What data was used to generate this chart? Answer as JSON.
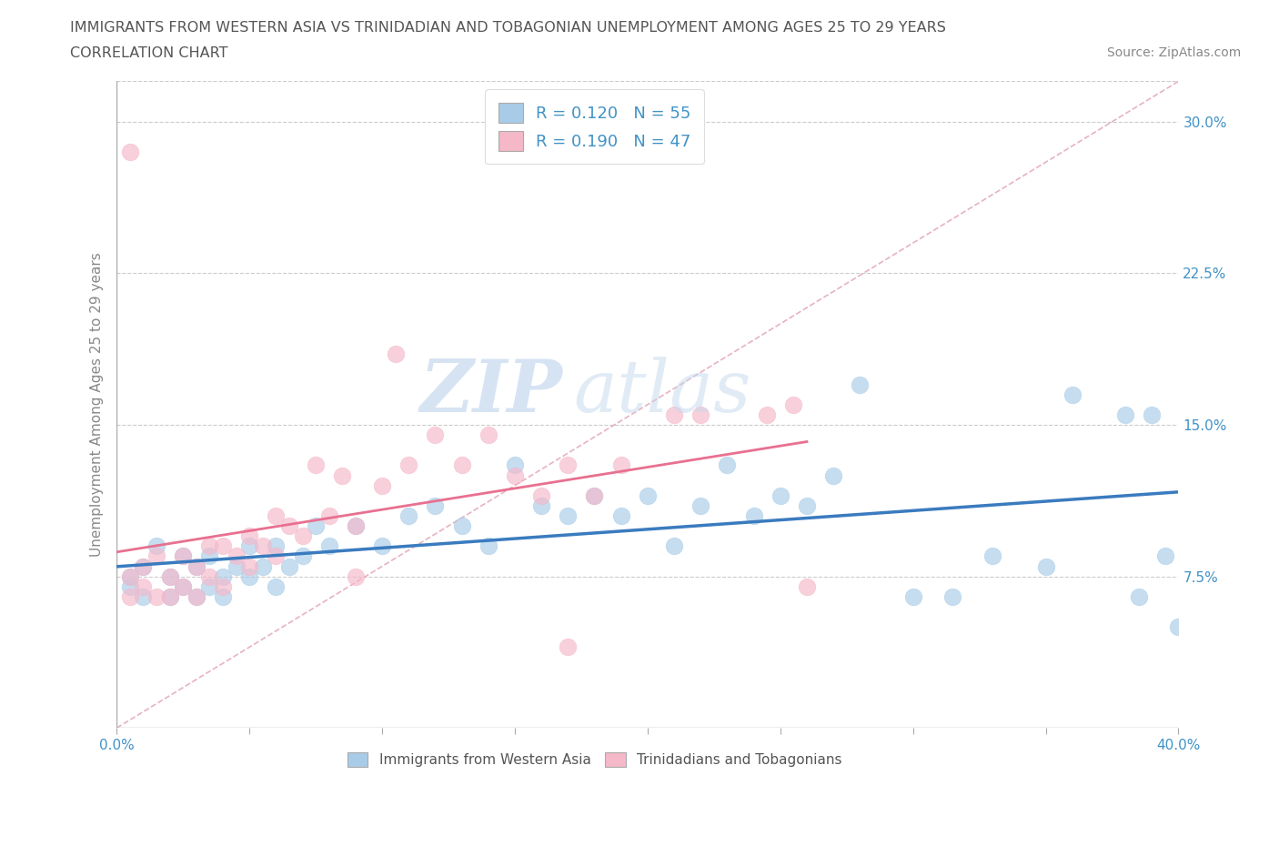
{
  "title_line1": "IMMIGRANTS FROM WESTERN ASIA VS TRINIDADIAN AND TOBAGONIAN UNEMPLOYMENT AMONG AGES 25 TO 29 YEARS",
  "title_line2": "CORRELATION CHART",
  "source_text": "Source: ZipAtlas.com",
  "ylabel": "Unemployment Among Ages 25 to 29 years",
  "xlim": [
    0.0,
    0.4
  ],
  "ylim": [
    0.0,
    0.32
  ],
  "xticks": [
    0.0,
    0.05,
    0.1,
    0.15,
    0.2,
    0.25,
    0.3,
    0.35,
    0.4
  ],
  "xlabel_ticks_show": [
    0.0,
    0.4
  ],
  "xticklabels_show": [
    "0.0%",
    "40.0%"
  ],
  "yticks_right": [
    0.075,
    0.15,
    0.225,
    0.3
  ],
  "yticklabels_right": [
    "7.5%",
    "15.0%",
    "22.5%",
    "30.0%"
  ],
  "legend_r1": "R = 0.120",
  "legend_n1": "N = 55",
  "legend_r2": "R = 0.190",
  "legend_n2": "N = 47",
  "color_blue": "#a8cce8",
  "color_pink": "#f5b8c8",
  "color_blue_line": "#3a7bbf",
  "color_pink_line": "#e87090",
  "color_dash": "#e8a0b0",
  "color_title": "#555555",
  "color_legend_text": "#4292c6",
  "watermark_zip": "ZIP",
  "watermark_atlas": "atlas",
  "blue_scatter_x": [
    0.005,
    0.005,
    0.01,
    0.01,
    0.015,
    0.02,
    0.02,
    0.025,
    0.025,
    0.03,
    0.03,
    0.035,
    0.035,
    0.04,
    0.04,
    0.045,
    0.05,
    0.05,
    0.055,
    0.06,
    0.06,
    0.065,
    0.07,
    0.075,
    0.08,
    0.09,
    0.1,
    0.11,
    0.12,
    0.13,
    0.14,
    0.15,
    0.16,
    0.17,
    0.18,
    0.19,
    0.2,
    0.21,
    0.22,
    0.23,
    0.24,
    0.25,
    0.26,
    0.27,
    0.28,
    0.3,
    0.315,
    0.33,
    0.35,
    0.36,
    0.38,
    0.385,
    0.39,
    0.395,
    0.4
  ],
  "blue_scatter_y": [
    0.07,
    0.075,
    0.065,
    0.08,
    0.09,
    0.065,
    0.075,
    0.07,
    0.085,
    0.065,
    0.08,
    0.07,
    0.085,
    0.065,
    0.075,
    0.08,
    0.075,
    0.09,
    0.08,
    0.07,
    0.09,
    0.08,
    0.085,
    0.1,
    0.09,
    0.1,
    0.09,
    0.105,
    0.11,
    0.1,
    0.09,
    0.13,
    0.11,
    0.105,
    0.115,
    0.105,
    0.115,
    0.09,
    0.11,
    0.13,
    0.105,
    0.115,
    0.11,
    0.125,
    0.17,
    0.065,
    0.065,
    0.085,
    0.08,
    0.165,
    0.155,
    0.065,
    0.155,
    0.085,
    0.05
  ],
  "pink_scatter_x": [
    0.005,
    0.005,
    0.005,
    0.01,
    0.01,
    0.015,
    0.015,
    0.02,
    0.02,
    0.025,
    0.025,
    0.03,
    0.03,
    0.035,
    0.035,
    0.04,
    0.04,
    0.045,
    0.05,
    0.05,
    0.055,
    0.06,
    0.06,
    0.065,
    0.07,
    0.075,
    0.08,
    0.085,
    0.09,
    0.1,
    0.11,
    0.12,
    0.13,
    0.14,
    0.15,
    0.16,
    0.17,
    0.18,
    0.19,
    0.21,
    0.22,
    0.245,
    0.255,
    0.26,
    0.105,
    0.09,
    0.17
  ],
  "pink_scatter_y": [
    0.065,
    0.075,
    0.285,
    0.07,
    0.08,
    0.065,
    0.085,
    0.065,
    0.075,
    0.07,
    0.085,
    0.065,
    0.08,
    0.075,
    0.09,
    0.07,
    0.09,
    0.085,
    0.08,
    0.095,
    0.09,
    0.085,
    0.105,
    0.1,
    0.095,
    0.13,
    0.105,
    0.125,
    0.1,
    0.12,
    0.13,
    0.145,
    0.13,
    0.145,
    0.125,
    0.115,
    0.13,
    0.115,
    0.13,
    0.155,
    0.155,
    0.155,
    0.16,
    0.07,
    0.185,
    0.075,
    0.04
  ]
}
